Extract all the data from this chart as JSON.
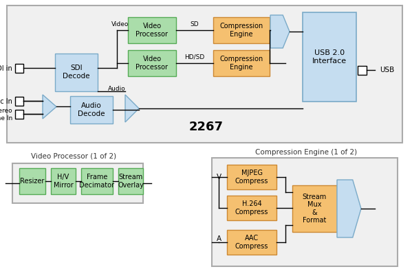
{
  "bg_color": "#ffffff",
  "green_color": "#aaddaa",
  "green_border": "#55aa55",
  "orange_color": "#f5c070",
  "orange_border": "#cc8833",
  "blue_light": "#c5ddf0",
  "blue_border": "#7aaac8",
  "gray_border": "#aaaaaa",
  "gray_fill": "#f0f0f0",
  "line_color": "#000000",
  "label_2267": "2267",
  "vp_title": "Video Processor (1 of 2)",
  "ce_title": "Compression Engine (1 of 2)"
}
